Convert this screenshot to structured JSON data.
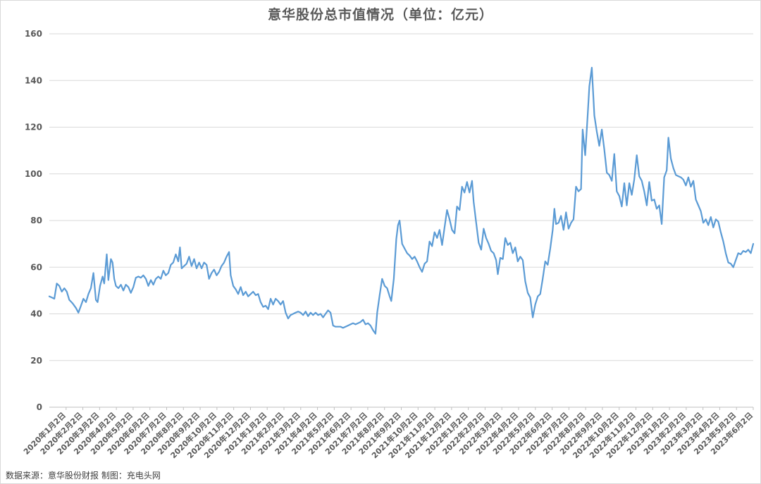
{
  "chart_data": {
    "type": "line",
    "title": "意华股份总市值情况（单位：亿元）",
    "xlabel": "",
    "ylabel": "",
    "ylim": [
      0,
      160
    ],
    "yticks": [
      0,
      20,
      40,
      60,
      80,
      100,
      120,
      140,
      160
    ],
    "grid": true,
    "legend": "none",
    "colors": {
      "line": "#5b9bd5",
      "grid": "#d9d9d9",
      "axis": "#bfbfbf",
      "text": "#595959"
    },
    "xtick_labels": [
      "2020年1月2日",
      "2020年2月2日",
      "2020年3月2日",
      "2020年4月2日",
      "2020年5月2日",
      "2020年6月2日",
      "2020年7月2日",
      "2020年8月2日",
      "2020年9月2日",
      "2020年10月2日",
      "2020年11月2日",
      "2020年12月2日",
      "2021年1月2日",
      "2021年2月2日",
      "2021年3月2日",
      "2021年4月2日",
      "2021年5月2日",
      "2021年6月2日",
      "2021年7月2日",
      "2021年8月2日",
      "2021年9月2日",
      "2021年10月2日",
      "2021年11月2日",
      "2021年12月2日",
      "2022年1月2日",
      "2022年2月2日",
      "2022年3月2日",
      "2022年4月2日",
      "2022年5月2日",
      "2022年6月2日",
      "2022年7月2日",
      "2022年8月2日",
      "2022年9月2日",
      "2022年10月2日",
      "2022年11月2日",
      "2022年12月2日",
      "2023年1月2日",
      "2023年2月2日",
      "2023年3月2日",
      "2023年4月2日",
      "2023年5月2日",
      "2023年6月2日"
    ],
    "x_range": [
      0,
      42.3
    ],
    "points": [
      [
        0.0,
        47.5
      ],
      [
        0.15,
        47.0
      ],
      [
        0.3,
        46.5
      ],
      [
        0.45,
        53.0
      ],
      [
        0.6,
        52.0
      ],
      [
        0.75,
        49.5
      ],
      [
        0.9,
        51.0
      ],
      [
        1.05,
        49.5
      ],
      [
        1.2,
        46.0
      ],
      [
        1.4,
        44.5
      ],
      [
        1.6,
        42.5
      ],
      [
        1.75,
        40.5
      ],
      [
        1.9,
        43.5
      ],
      [
        2.05,
        46.5
      ],
      [
        2.2,
        45.0
      ],
      [
        2.35,
        48.5
      ],
      [
        2.5,
        51.0
      ],
      [
        2.65,
        57.5
      ],
      [
        2.8,
        46.0
      ],
      [
        2.9,
        45.0
      ],
      [
        3.05,
        52.0
      ],
      [
        3.2,
        56.0
      ],
      [
        3.3,
        53.0
      ],
      [
        3.45,
        65.5
      ],
      [
        3.55,
        54.5
      ],
      [
        3.7,
        63.5
      ],
      [
        3.8,
        62.0
      ],
      [
        3.9,
        55.0
      ],
      [
        4.0,
        52.0
      ],
      [
        4.15,
        51.0
      ],
      [
        4.3,
        52.5
      ],
      [
        4.45,
        50.0
      ],
      [
        4.6,
        52.5
      ],
      [
        4.75,
        51.5
      ],
      [
        4.9,
        49.0
      ],
      [
        5.05,
        51.5
      ],
      [
        5.2,
        55.5
      ],
      [
        5.35,
        56.0
      ],
      [
        5.5,
        55.5
      ],
      [
        5.65,
        56.5
      ],
      [
        5.8,
        55.0
      ],
      [
        5.95,
        52.0
      ],
      [
        6.1,
        54.5
      ],
      [
        6.25,
        52.5
      ],
      [
        6.4,
        55.0
      ],
      [
        6.55,
        56.0
      ],
      [
        6.7,
        55.0
      ],
      [
        6.85,
        58.5
      ],
      [
        7.0,
        56.5
      ],
      [
        7.15,
        57.5
      ],
      [
        7.3,
        61.0
      ],
      [
        7.45,
        62.0
      ],
      [
        7.6,
        65.5
      ],
      [
        7.75,
        62.5
      ],
      [
        7.85,
        68.5
      ],
      [
        7.95,
        59.5
      ],
      [
        8.1,
        60.5
      ],
      [
        8.25,
        61.5
      ],
      [
        8.4,
        64.5
      ],
      [
        8.55,
        60.5
      ],
      [
        8.7,
        63.5
      ],
      [
        8.85,
        59.5
      ],
      [
        9.0,
        62.0
      ],
      [
        9.15,
        59.5
      ],
      [
        9.3,
        62.0
      ],
      [
        9.45,
        61.0
      ],
      [
        9.6,
        55.0
      ],
      [
        9.75,
        57.5
      ],
      [
        9.9,
        59.0
      ],
      [
        10.05,
        56.5
      ],
      [
        10.2,
        58.0
      ],
      [
        10.35,
        60.5
      ],
      [
        10.5,
        62.0
      ],
      [
        10.65,
        64.5
      ],
      [
        10.8,
        66.5
      ],
      [
        10.9,
        56.5
      ],
      [
        11.05,
        52.0
      ],
      [
        11.2,
        50.5
      ],
      [
        11.35,
        48.5
      ],
      [
        11.5,
        51.5
      ],
      [
        11.65,
        48.0
      ],
      [
        11.8,
        49.5
      ],
      [
        11.95,
        47.5
      ],
      [
        12.1,
        48.5
      ],
      [
        12.25,
        49.5
      ],
      [
        12.4,
        48.0
      ],
      [
        12.55,
        48.5
      ],
      [
        12.7,
        45.0
      ],
      [
        12.85,
        43.0
      ],
      [
        13.0,
        43.5
      ],
      [
        13.15,
        42.0
      ],
      [
        13.3,
        46.5
      ],
      [
        13.45,
        44.0
      ],
      [
        13.6,
        46.5
      ],
      [
        13.75,
        45.5
      ],
      [
        13.9,
        44.0
      ],
      [
        14.05,
        45.5
      ],
      [
        14.2,
        40.5
      ],
      [
        14.35,
        38.0
      ],
      [
        14.5,
        39.5
      ],
      [
        14.65,
        40.0
      ],
      [
        14.8,
        40.5
      ],
      [
        14.95,
        41.0
      ],
      [
        15.1,
        40.5
      ],
      [
        15.25,
        39.5
      ],
      [
        15.4,
        41.0
      ],
      [
        15.55,
        39.0
      ],
      [
        15.7,
        40.5
      ],
      [
        15.85,
        39.5
      ],
      [
        16.0,
        40.5
      ],
      [
        16.15,
        39.5
      ],
      [
        16.3,
        40.0
      ],
      [
        16.45,
        38.5
      ],
      [
        16.6,
        40.0
      ],
      [
        16.75,
        41.5
      ],
      [
        16.9,
        40.5
      ],
      [
        17.05,
        35.0
      ],
      [
        17.2,
        34.5
      ],
      [
        17.35,
        34.5
      ],
      [
        17.5,
        34.5
      ],
      [
        17.65,
        34.0
      ],
      [
        17.8,
        34.5
      ],
      [
        17.95,
        35.0
      ],
      [
        18.1,
        35.5
      ],
      [
        18.25,
        36.0
      ],
      [
        18.4,
        35.5
      ],
      [
        18.55,
        36.0
      ],
      [
        18.7,
        36.5
      ],
      [
        18.85,
        37.5
      ],
      [
        19.0,
        35.5
      ],
      [
        19.15,
        36.0
      ],
      [
        19.3,
        35.0
      ],
      [
        19.45,
        33.0
      ],
      [
        19.6,
        31.5
      ],
      [
        19.7,
        40.5
      ],
      [
        19.85,
        48.0
      ],
      [
        20.0,
        55.0
      ],
      [
        20.15,
        52.0
      ],
      [
        20.3,
        51.0
      ],
      [
        20.45,
        47.5
      ],
      [
        20.55,
        45.5
      ],
      [
        20.7,
        55.0
      ],
      [
        20.85,
        72.0
      ],
      [
        20.95,
        78.0
      ],
      [
        21.05,
        80.0
      ],
      [
        21.2,
        70.0
      ],
      [
        21.35,
        68.0
      ],
      [
        21.5,
        66.0
      ],
      [
        21.65,
        65.0
      ],
      [
        21.8,
        63.5
      ],
      [
        21.95,
        64.5
      ],
      [
        22.1,
        62.5
      ],
      [
        22.25,
        60.0
      ],
      [
        22.4,
        58.0
      ],
      [
        22.55,
        61.5
      ],
      [
        22.7,
        62.5
      ],
      [
        22.85,
        71.0
      ],
      [
        23.0,
        69.0
      ],
      [
        23.15,
        75.0
      ],
      [
        23.3,
        72.5
      ],
      [
        23.45,
        76.0
      ],
      [
        23.6,
        69.5
      ],
      [
        23.75,
        77.0
      ],
      [
        23.9,
        84.5
      ],
      [
        24.05,
        80.5
      ],
      [
        24.2,
        76.0
      ],
      [
        24.35,
        74.5
      ],
      [
        24.5,
        86.0
      ],
      [
        24.65,
        84.5
      ],
      [
        24.8,
        94.5
      ],
      [
        24.95,
        92.0
      ],
      [
        25.1,
        96.5
      ],
      [
        25.25,
        92.0
      ],
      [
        25.4,
        97.0
      ],
      [
        25.5,
        88.0
      ],
      [
        25.65,
        79.0
      ],
      [
        25.8,
        70.5
      ],
      [
        25.95,
        67.5
      ],
      [
        26.1,
        76.5
      ],
      [
        26.25,
        72.5
      ],
      [
        26.4,
        70.0
      ],
      [
        26.55,
        67.0
      ],
      [
        26.7,
        66.0
      ],
      [
        26.85,
        63.0
      ],
      [
        26.95,
        57.0
      ],
      [
        27.1,
        64.0
      ],
      [
        27.25,
        63.5
      ],
      [
        27.4,
        72.5
      ],
      [
        27.55,
        69.5
      ],
      [
        27.7,
        70.5
      ],
      [
        27.85,
        66.0
      ],
      [
        28.0,
        68.5
      ],
      [
        28.15,
        62.5
      ],
      [
        28.3,
        64.5
      ],
      [
        28.45,
        63.0
      ],
      [
        28.6,
        54.0
      ],
      [
        28.75,
        49.0
      ],
      [
        28.9,
        47.0
      ],
      [
        29.05,
        38.5
      ],
      [
        29.2,
        44.0
      ],
      [
        29.35,
        47.5
      ],
      [
        29.5,
        48.5
      ],
      [
        29.65,
        55.0
      ],
      [
        29.8,
        62.5
      ],
      [
        29.95,
        61.0
      ],
      [
        30.1,
        68.0
      ],
      [
        30.25,
        76.0
      ],
      [
        30.35,
        85.0
      ],
      [
        30.45,
        78.5
      ],
      [
        30.6,
        79.0
      ],
      [
        30.75,
        82.0
      ],
      [
        30.9,
        76.0
      ],
      [
        31.05,
        83.5
      ],
      [
        31.2,
        76.5
      ],
      [
        31.35,
        79.0
      ],
      [
        31.5,
        80.5
      ],
      [
        31.65,
        94.5
      ],
      [
        31.8,
        92.5
      ],
      [
        31.95,
        93.5
      ],
      [
        32.05,
        119.0
      ],
      [
        32.2,
        108.0
      ],
      [
        32.35,
        125.0
      ],
      [
        32.45,
        137.5
      ],
      [
        32.6,
        145.5
      ],
      [
        32.75,
        125.0
      ],
      [
        32.9,
        118.0
      ],
      [
        33.05,
        112.0
      ],
      [
        33.2,
        119.0
      ],
      [
        33.35,
        110.5
      ],
      [
        33.5,
        100.5
      ],
      [
        33.65,
        99.5
      ],
      [
        33.8,
        97.0
      ],
      [
        33.95,
        108.5
      ],
      [
        34.1,
        92.5
      ],
      [
        34.25,
        90.5
      ],
      [
        34.4,
        86.0
      ],
      [
        34.55,
        96.0
      ],
      [
        34.7,
        86.5
      ],
      [
        34.85,
        96.0
      ],
      [
        35.0,
        91.0
      ],
      [
        35.15,
        97.5
      ],
      [
        35.3,
        108.0
      ],
      [
        35.45,
        99.0
      ],
      [
        35.6,
        97.0
      ],
      [
        35.75,
        92.5
      ],
      [
        35.9,
        86.5
      ],
      [
        36.05,
        96.5
      ],
      [
        36.2,
        88.5
      ],
      [
        36.35,
        89.0
      ],
      [
        36.5,
        85.0
      ],
      [
        36.65,
        86.5
      ],
      [
        36.8,
        78.5
      ],
      [
        36.95,
        98.5
      ],
      [
        37.1,
        101.5
      ],
      [
        37.2,
        115.5
      ],
      [
        37.35,
        106.5
      ],
      [
        37.5,
        102.5
      ],
      [
        37.65,
        99.5
      ],
      [
        37.8,
        99.0
      ],
      [
        37.95,
        98.5
      ],
      [
        38.1,
        97.5
      ],
      [
        38.25,
        95.0
      ],
      [
        38.4,
        98.5
      ],
      [
        38.55,
        94.5
      ],
      [
        38.7,
        97.0
      ],
      [
        38.85,
        89.0
      ],
      [
        39.0,
        86.5
      ],
      [
        39.15,
        84.0
      ],
      [
        39.3,
        79.0
      ],
      [
        39.45,
        80.5
      ],
      [
        39.6,
        78.0
      ],
      [
        39.75,
        81.5
      ],
      [
        39.9,
        77.0
      ],
      [
        40.05,
        80.5
      ],
      [
        40.2,
        79.5
      ],
      [
        40.35,
        75.0
      ],
      [
        40.5,
        71.0
      ],
      [
        40.65,
        66.0
      ],
      [
        40.8,
        62.0
      ],
      [
        40.95,
        61.5
      ],
      [
        41.1,
        60.0
      ],
      [
        41.25,
        63.0
      ],
      [
        41.4,
        66.0
      ],
      [
        41.55,
        65.5
      ],
      [
        41.7,
        67.0
      ],
      [
        41.85,
        66.5
      ],
      [
        42.0,
        67.5
      ],
      [
        42.15,
        66.0
      ],
      [
        42.3,
        70.0
      ]
    ]
  },
  "source_note": "数据来源：意华股份财报   制图：充电头网"
}
